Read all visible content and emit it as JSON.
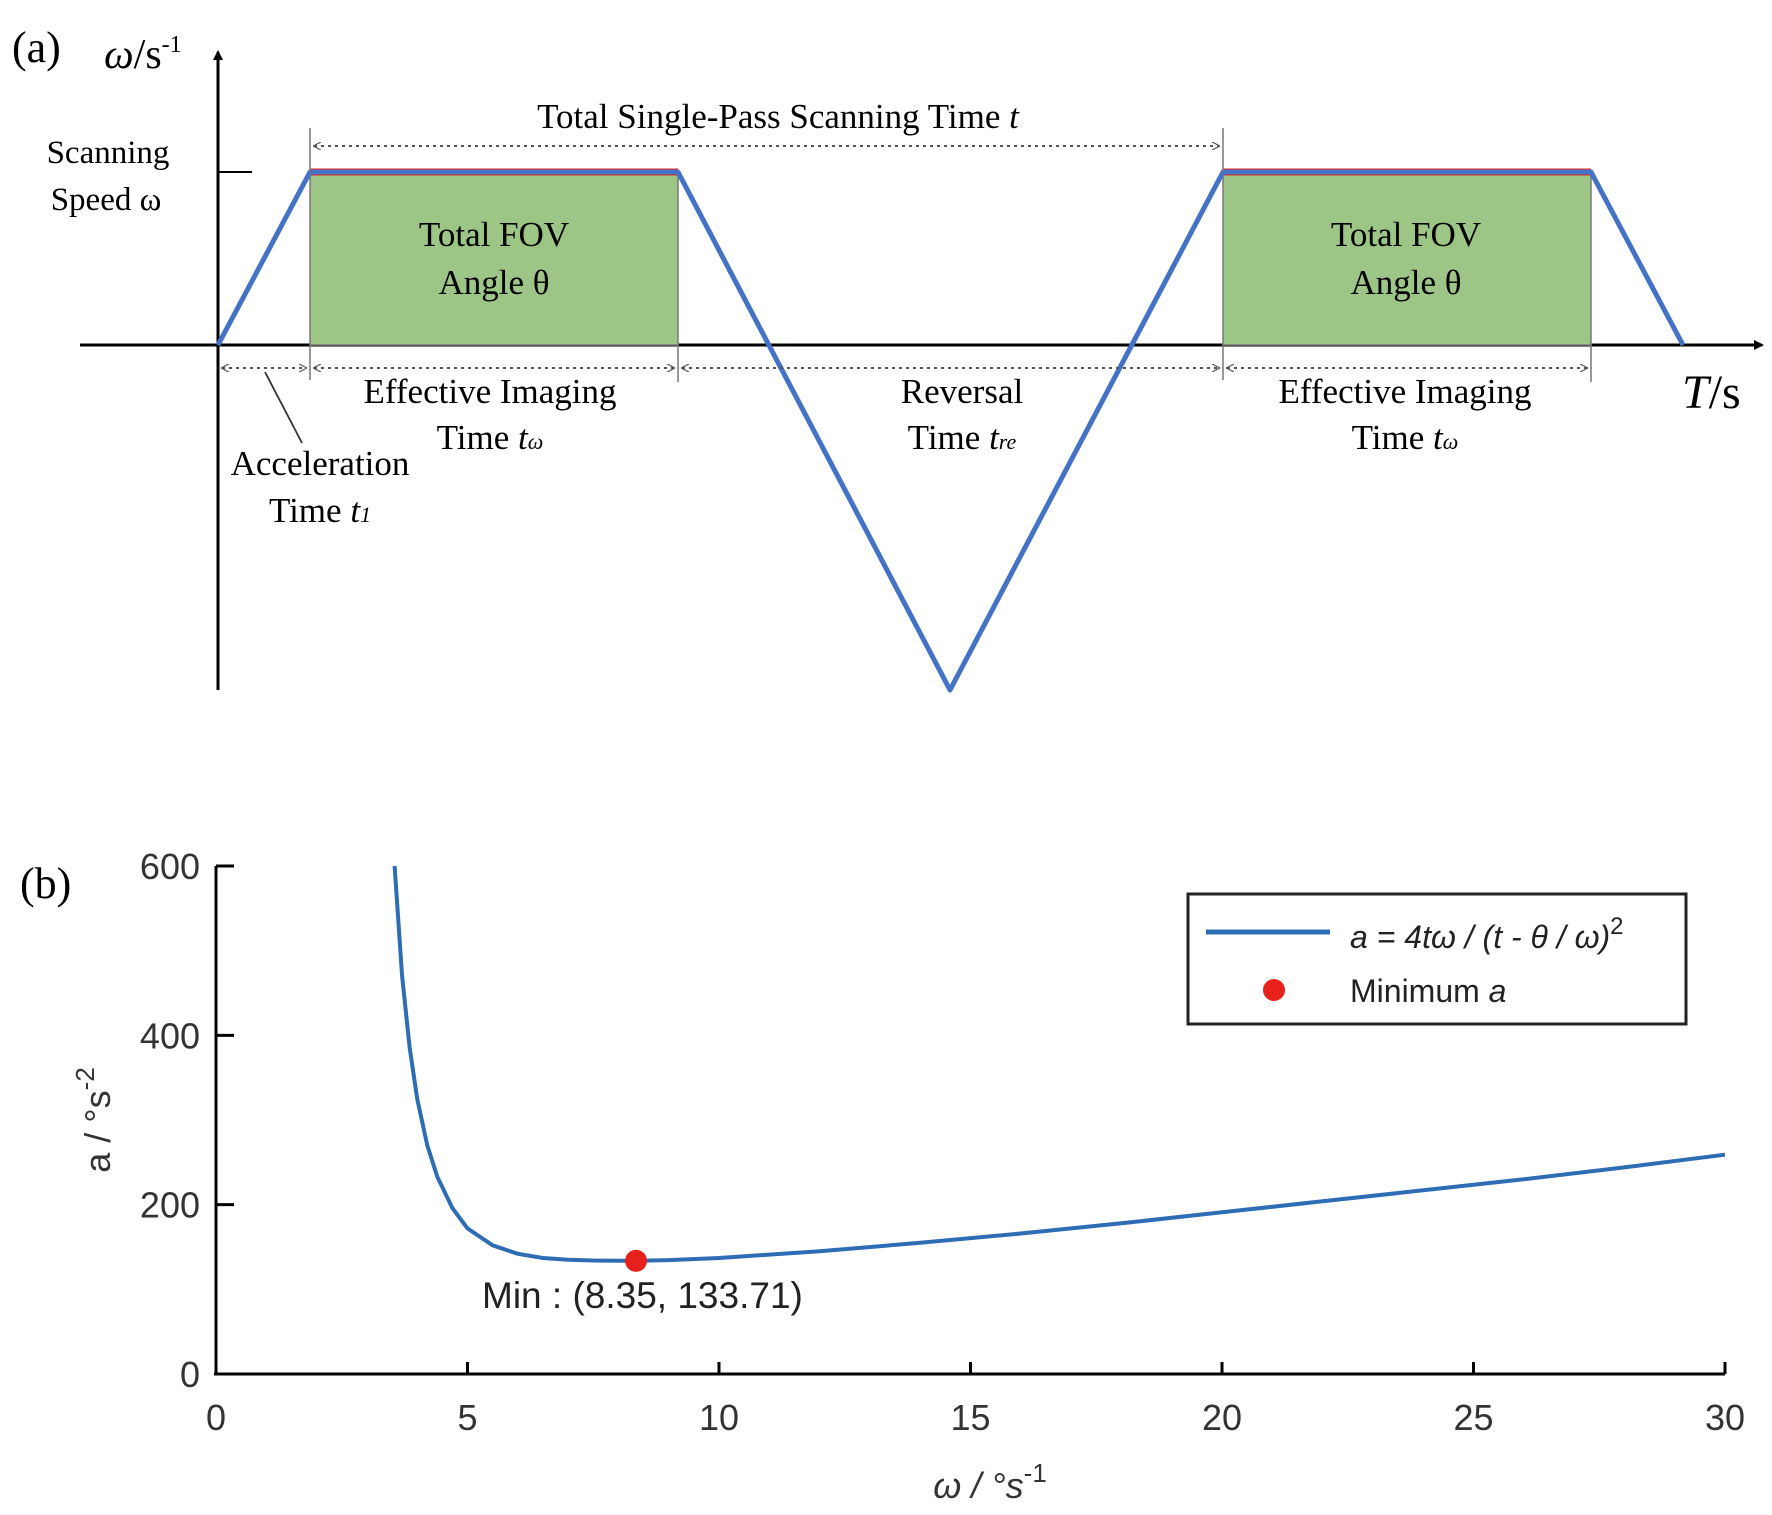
{
  "panel_a": {
    "label": "(a)",
    "y_axis_symbol": "ω",
    "y_axis_unit": "/s",
    "y_axis_exp": "-1",
    "x_axis_symbol": "T",
    "x_axis_unit": "/s",
    "scanning_speed_line1": "Scanning",
    "scanning_speed_line2": "Speed ω",
    "total_time_label": "Total Single-Pass Scanning Time ",
    "total_time_symbol": "t",
    "fov_line1": "Total FOV",
    "fov_line2": "Angle θ",
    "effective_line1": "Effective Imaging",
    "effective_line2": "Time ",
    "effective_symbol": "t",
    "effective_sub": "ω",
    "reversal_line1": "Reversal",
    "reversal_line2": "Time ",
    "reversal_symbol": "t",
    "reversal_sub": "re",
    "acceleration_line1": "Acceleration",
    "acceleration_line2": "Time ",
    "acceleration_symbol": "t",
    "acceleration_sub": "1",
    "colors": {
      "profile": "#4472c4",
      "fov_fill": "#9dc686",
      "scan_top": "#e8201c",
      "axis": "#000000"
    }
  },
  "panel_b": {
    "label": "(b)",
    "chart_data": {
      "type": "line",
      "series": [
        {
          "name": "a = 4tω / (t - θ / ω)²",
          "x": [
            3.55,
            3.7,
            3.85,
            4.0,
            4.2,
            4.4,
            4.7,
            5.0,
            5.5,
            6.0,
            6.5,
            7.0,
            7.5,
            8.0,
            8.35,
            9.0,
            10.0,
            11.0,
            12.0,
            14.0,
            16.0,
            18.0,
            20.0,
            22.0,
            24.0,
            26.0,
            28.0,
            30.0
          ],
          "y": [
            600,
            470,
            385,
            325,
            270,
            233,
            196,
            172,
            152,
            142,
            137,
            135,
            134,
            133.8,
            133.71,
            134.5,
            137,
            141,
            145,
            155,
            166,
            178,
            191,
            204,
            217,
            230,
            244,
            259
          ]
        }
      ],
      "minimum": {
        "name": "Minimum a",
        "x": 8.35,
        "y": 133.71,
        "label": "Min : (8.35, 133.71)"
      },
      "xlim": [
        0,
        30
      ],
      "ylim": [
        0,
        600
      ],
      "xticks": [
        0,
        5,
        10,
        15,
        20,
        25,
        30
      ],
      "yticks": [
        0,
        200,
        400,
        600
      ],
      "xlabel": "ω / °s",
      "xlabel_exp": "-1",
      "ylabel": "a / °s",
      "ylabel_exp": "-2",
      "legend_position": "top-right",
      "legend": {
        "line_a": "a",
        "line_rest": " = 4tω / (t - θ / ω)",
        "line_exp": "2",
        "marker_text": "Minimum ",
        "marker_a": "a"
      },
      "colors": {
        "line": "#2e6db4",
        "marker": "#e8201c"
      }
    }
  }
}
